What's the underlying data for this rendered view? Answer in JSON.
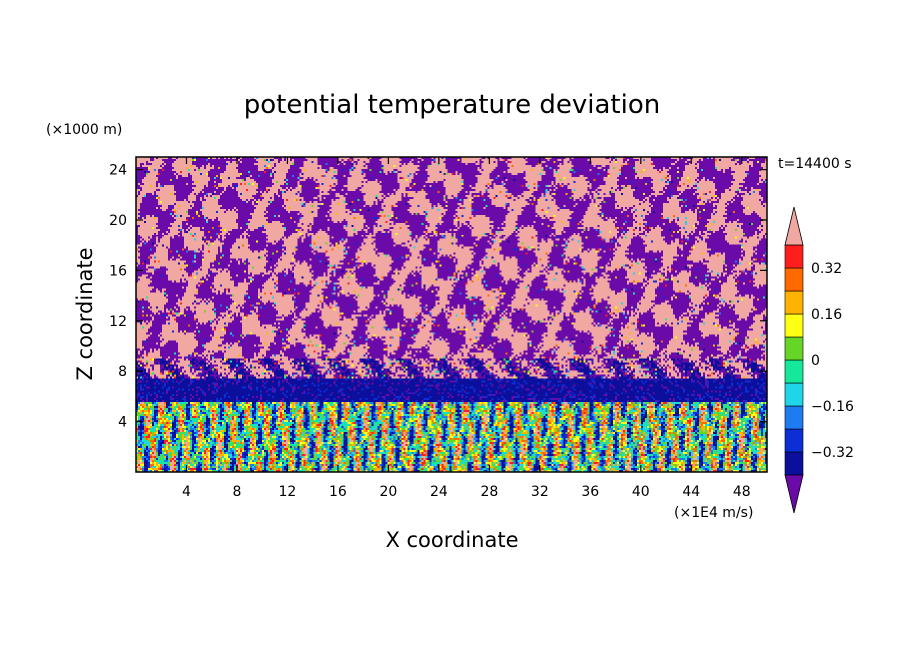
{
  "chart_data": {
    "type": "heatmap",
    "title": "potential temperature deviation",
    "xlabel": "X coordinate",
    "ylabel": "Z coordinate",
    "x_unit": "(×1E4 m/s)",
    "y_unit": "(×1000 m)",
    "time_label": "t=14400 s",
    "xlim": [
      0,
      50
    ],
    "ylim": [
      0,
      25
    ],
    "x_ticks": [
      4,
      8,
      12,
      16,
      20,
      24,
      28,
      32,
      36,
      40,
      44,
      48
    ],
    "y_ticks": [
      4,
      8,
      12,
      16,
      20,
      24
    ],
    "colorbar": {
      "levels": [
        -0.4,
        -0.32,
        -0.24,
        -0.16,
        -0.08,
        0,
        0.08,
        0.16,
        0.24,
        0.32,
        0.4
      ],
      "tick_labels": [
        "0.32",
        "0.16",
        "0",
        "−0.16",
        "−0.32"
      ],
      "colors": [
        "#6a0aa8",
        "#0b0f9c",
        "#0b2ed6",
        "#1f7bf2",
        "#1fd6e8",
        "#16e89a",
        "#66d626",
        "#ffff14",
        "#ffb300",
        "#ff6a00",
        "#ff1e1e",
        "#f2a8a2"
      ],
      "extend": "both"
    },
    "field_structure": {
      "upper_layer_z": [
        9,
        25
      ],
      "upper_layer_values": [
        -0.45,
        0.45
      ],
      "blue_band_z": [
        5.5,
        7.5
      ],
      "blue_band_value": -0.36,
      "lower_turbulent_z": [
        0,
        5.5
      ],
      "lower_turbulent_range": [
        -0.4,
        0.4
      ]
    }
  }
}
